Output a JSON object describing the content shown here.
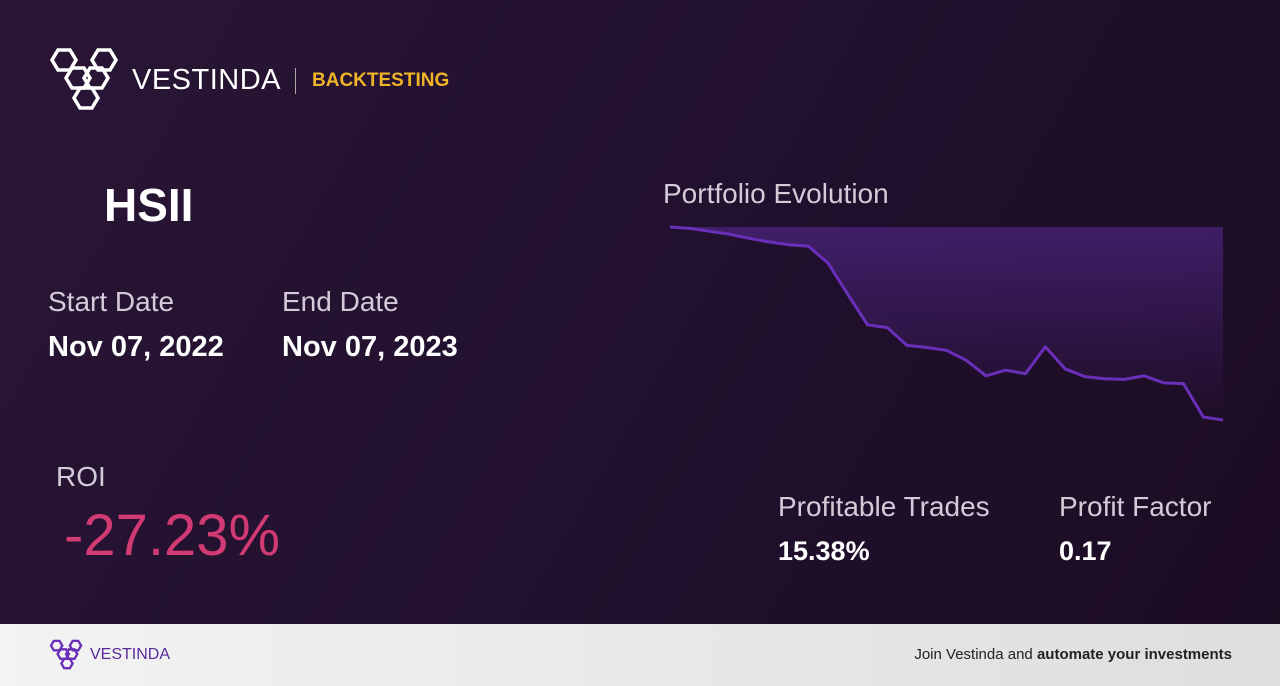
{
  "header": {
    "brand": "VESTINDA",
    "section": "BACKTESTING"
  },
  "ticker": "HSII",
  "start_date": {
    "label": "Start Date",
    "value": "Nov 07, 2022"
  },
  "end_date": {
    "label": "End Date",
    "value": "Nov 07, 2023"
  },
  "roi": {
    "label": "ROI",
    "value": "-27.23%"
  },
  "profitable_trades": {
    "label": "Profitable Trades",
    "value": "15.38%"
  },
  "profit_factor": {
    "label": "Profit Factor",
    "value": "0.17"
  },
  "chart_data": {
    "type": "line",
    "title": "Portfolio Evolution",
    "color": "#6a2fb8",
    "values": [
      100,
      99.8,
      99.4,
      99.0,
      98.4,
      97.9,
      97.5,
      97.3,
      94.9,
      90.5,
      86.2,
      85.8,
      83.3,
      83.0,
      82.6,
      81.2,
      79.0,
      79.8,
      79.3,
      83.1,
      80.0,
      78.9,
      78.6,
      78.5,
      79.0,
      78.0,
      77.9,
      73.2,
      72.77
    ]
  },
  "footer": {
    "brand": "VESTINDA",
    "text": "Join Vestinda and",
    "bold": "automate your investments"
  }
}
